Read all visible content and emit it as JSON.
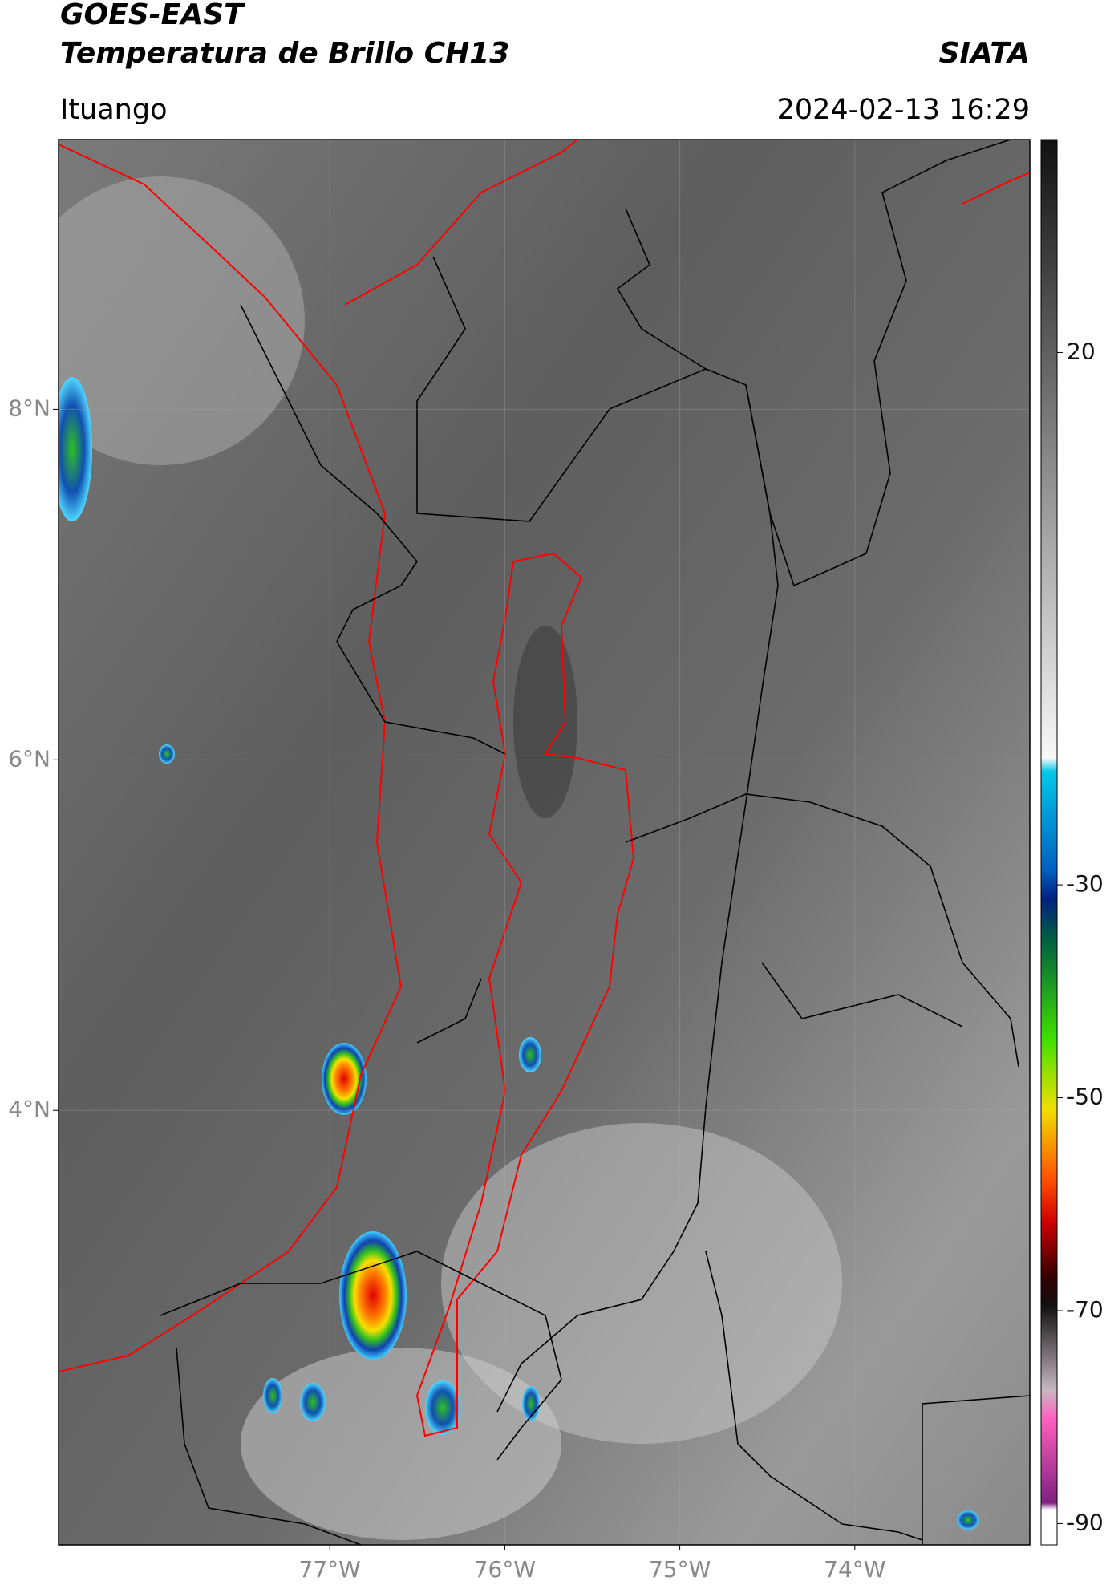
{
  "header": {
    "title": "GOES-EAST",
    "subtitle": "Temperatura de Brillo CH13",
    "brand": "SIATA",
    "location": "Ituango",
    "datetime": "2024-02-13 16:29"
  },
  "map": {
    "xlim": [
      -78.55,
      -73.0
    ],
    "ylim": [
      1.52,
      9.54
    ],
    "xticks": [
      {
        "value": -77,
        "label": "77°W"
      },
      {
        "value": -76,
        "label": "76°W"
      },
      {
        "value": -75,
        "label": "75°W"
      },
      {
        "value": -74,
        "label": "74°W"
      }
    ],
    "yticks": [
      {
        "value": 8,
        "label": "8°N"
      },
      {
        "value": 6,
        "label": "6°N"
      },
      {
        "value": 4,
        "label": "4°N"
      }
    ],
    "grid": true
  },
  "colorbar": {
    "clim": [
      -92,
      40
    ],
    "ticks": [
      20,
      -30,
      -50,
      -70,
      -90
    ]
  }
}
